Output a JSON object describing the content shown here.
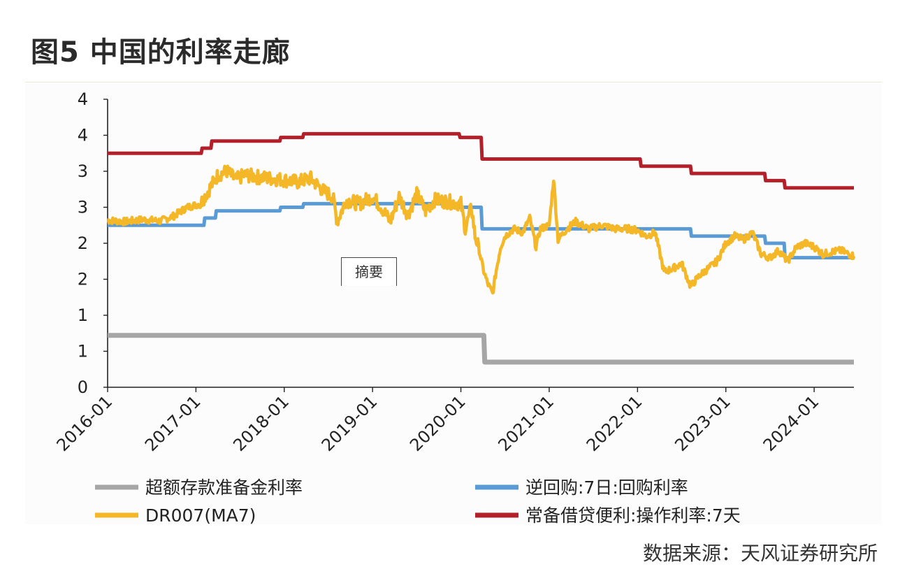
{
  "figure": {
    "title": "图5  中国的利率走廊",
    "source": "数据来源：天风证券研究所",
    "tooltip": "摘要"
  },
  "chart_data": {
    "type": "line",
    "title": "",
    "xlabel": "",
    "ylabel": "",
    "y_tick_labels": [
      "0",
      "1",
      "1",
      "2",
      "2",
      "3",
      "3",
      "4",
      "4"
    ],
    "y_tick_values": [
      0,
      0.5,
      1.0,
      1.5,
      2.0,
      2.5,
      3.0,
      3.5,
      4.0
    ],
    "ylim": [
      0,
      4
    ],
    "x_tick_labels": [
      "2016-01",
      "2017-01",
      "2018-01",
      "2019-01",
      "2020-01",
      "2021-01",
      "2022-01",
      "2023-01",
      "2024-01"
    ],
    "x_tick_values": [
      2016.0,
      2017.0,
      2018.0,
      2019.0,
      2020.0,
      2021.0,
      2022.0,
      2023.0,
      2024.0
    ],
    "xlim": [
      2016.0,
      2024.45
    ],
    "grid": false,
    "legend_position": "bottom",
    "colors": {
      "excess_reserve": "#a6a6a6",
      "reverse_repo": "#5b9bd5",
      "dr007": "#f4b728",
      "slf": "#b3202a"
    },
    "series": [
      {
        "key": "excess_reserve",
        "name": "超额存款准备金利率",
        "points": [
          [
            2016.0,
            0.72
          ],
          [
            2020.26,
            0.72
          ],
          [
            2020.27,
            0.35
          ],
          [
            2024.45,
            0.35
          ]
        ]
      },
      {
        "key": "reverse_repo",
        "name": "逆回购:7日:回购利率",
        "points": [
          [
            2016.0,
            2.25
          ],
          [
            2017.09,
            2.25
          ],
          [
            2017.1,
            2.35
          ],
          [
            2017.22,
            2.35
          ],
          [
            2017.23,
            2.45
          ],
          [
            2017.95,
            2.45
          ],
          [
            2017.96,
            2.5
          ],
          [
            2018.21,
            2.5
          ],
          [
            2018.22,
            2.55
          ],
          [
            2019.89,
            2.55
          ],
          [
            2019.9,
            2.5
          ],
          [
            2020.23,
            2.5
          ],
          [
            2020.24,
            2.2
          ],
          [
            2022.6,
            2.2
          ],
          [
            2022.61,
            2.1
          ],
          [
            2023.44,
            2.1
          ],
          [
            2023.45,
            2.0
          ],
          [
            2023.66,
            2.0
          ],
          [
            2023.67,
            1.8
          ],
          [
            2024.45,
            1.8
          ]
        ]
      },
      {
        "key": "dr007",
        "name": "DR007(MA7)",
        "points": [
          [
            2016.0,
            2.32
          ],
          [
            2016.2,
            2.3
          ],
          [
            2016.4,
            2.33
          ],
          [
            2016.6,
            2.31
          ],
          [
            2016.75,
            2.38
          ],
          [
            2016.9,
            2.5
          ],
          [
            2017.05,
            2.55
          ],
          [
            2017.15,
            2.75
          ],
          [
            2017.25,
            2.95
          ],
          [
            2017.35,
            3.0
          ],
          [
            2017.45,
            2.88
          ],
          [
            2017.55,
            2.95
          ],
          [
            2017.7,
            2.92
          ],
          [
            2017.85,
            2.9
          ],
          [
            2018.0,
            2.88
          ],
          [
            2018.15,
            2.85
          ],
          [
            2018.3,
            2.9
          ],
          [
            2018.45,
            2.72
          ],
          [
            2018.55,
            2.65
          ],
          [
            2018.6,
            2.3
          ],
          [
            2018.7,
            2.6
          ],
          [
            2018.85,
            2.55
          ],
          [
            2019.0,
            2.65
          ],
          [
            2019.1,
            2.5
          ],
          [
            2019.2,
            2.3
          ],
          [
            2019.3,
            2.65
          ],
          [
            2019.4,
            2.4
          ],
          [
            2019.5,
            2.68
          ],
          [
            2019.6,
            2.45
          ],
          [
            2019.7,
            2.6
          ],
          [
            2019.85,
            2.58
          ],
          [
            2020.0,
            2.55
          ],
          [
            2020.05,
            2.2
          ],
          [
            2020.12,
            2.5
          ],
          [
            2020.16,
            2.1
          ],
          [
            2020.2,
            1.95
          ],
          [
            2020.25,
            1.65
          ],
          [
            2020.3,
            1.45
          ],
          [
            2020.36,
            1.3
          ],
          [
            2020.4,
            1.62
          ],
          [
            2020.45,
            1.95
          ],
          [
            2020.5,
            2.1
          ],
          [
            2020.6,
            2.2
          ],
          [
            2020.7,
            2.15
          ],
          [
            2020.78,
            2.35
          ],
          [
            2020.85,
            1.95
          ],
          [
            2020.9,
            2.2
          ],
          [
            2021.0,
            2.25
          ],
          [
            2021.05,
            2.9
          ],
          [
            2021.1,
            2.05
          ],
          [
            2021.2,
            2.2
          ],
          [
            2021.3,
            2.3
          ],
          [
            2021.45,
            2.2
          ],
          [
            2021.6,
            2.25
          ],
          [
            2021.75,
            2.2
          ],
          [
            2021.9,
            2.2
          ],
          [
            2022.0,
            2.18
          ],
          [
            2022.1,
            2.1
          ],
          [
            2022.2,
            2.15
          ],
          [
            2022.3,
            1.6
          ],
          [
            2022.4,
            1.65
          ],
          [
            2022.5,
            1.72
          ],
          [
            2022.6,
            1.4
          ],
          [
            2022.7,
            1.55
          ],
          [
            2022.8,
            1.65
          ],
          [
            2022.9,
            1.75
          ],
          [
            2023.0,
            2.0
          ],
          [
            2023.1,
            2.1
          ],
          [
            2023.2,
            2.05
          ],
          [
            2023.3,
            2.15
          ],
          [
            2023.4,
            1.85
          ],
          [
            2023.5,
            1.8
          ],
          [
            2023.6,
            1.9
          ],
          [
            2023.7,
            1.75
          ],
          [
            2023.8,
            1.95
          ],
          [
            2023.9,
            2.0
          ],
          [
            2024.0,
            1.95
          ],
          [
            2024.1,
            1.85
          ],
          [
            2024.2,
            1.88
          ],
          [
            2024.3,
            1.9
          ],
          [
            2024.45,
            1.82
          ]
        ]
      },
      {
        "key": "slf",
        "name": "常备借贷便利:操作利率:7天",
        "points": [
          [
            2016.0,
            3.25
          ],
          [
            2017.06,
            3.25
          ],
          [
            2017.07,
            3.32
          ],
          [
            2017.17,
            3.32
          ],
          [
            2017.18,
            3.42
          ],
          [
            2017.95,
            3.42
          ],
          [
            2017.96,
            3.47
          ],
          [
            2018.21,
            3.47
          ],
          [
            2018.22,
            3.52
          ],
          [
            2019.98,
            3.52
          ],
          [
            2019.99,
            3.47
          ],
          [
            2020.23,
            3.47
          ],
          [
            2020.24,
            3.17
          ],
          [
            2022.03,
            3.17
          ],
          [
            2022.04,
            3.07
          ],
          [
            2022.6,
            3.07
          ],
          [
            2022.61,
            2.97
          ],
          [
            2023.44,
            2.97
          ],
          [
            2023.45,
            2.87
          ],
          [
            2023.66,
            2.87
          ],
          [
            2023.67,
            2.77
          ],
          [
            2024.45,
            2.77
          ]
        ]
      }
    ]
  }
}
